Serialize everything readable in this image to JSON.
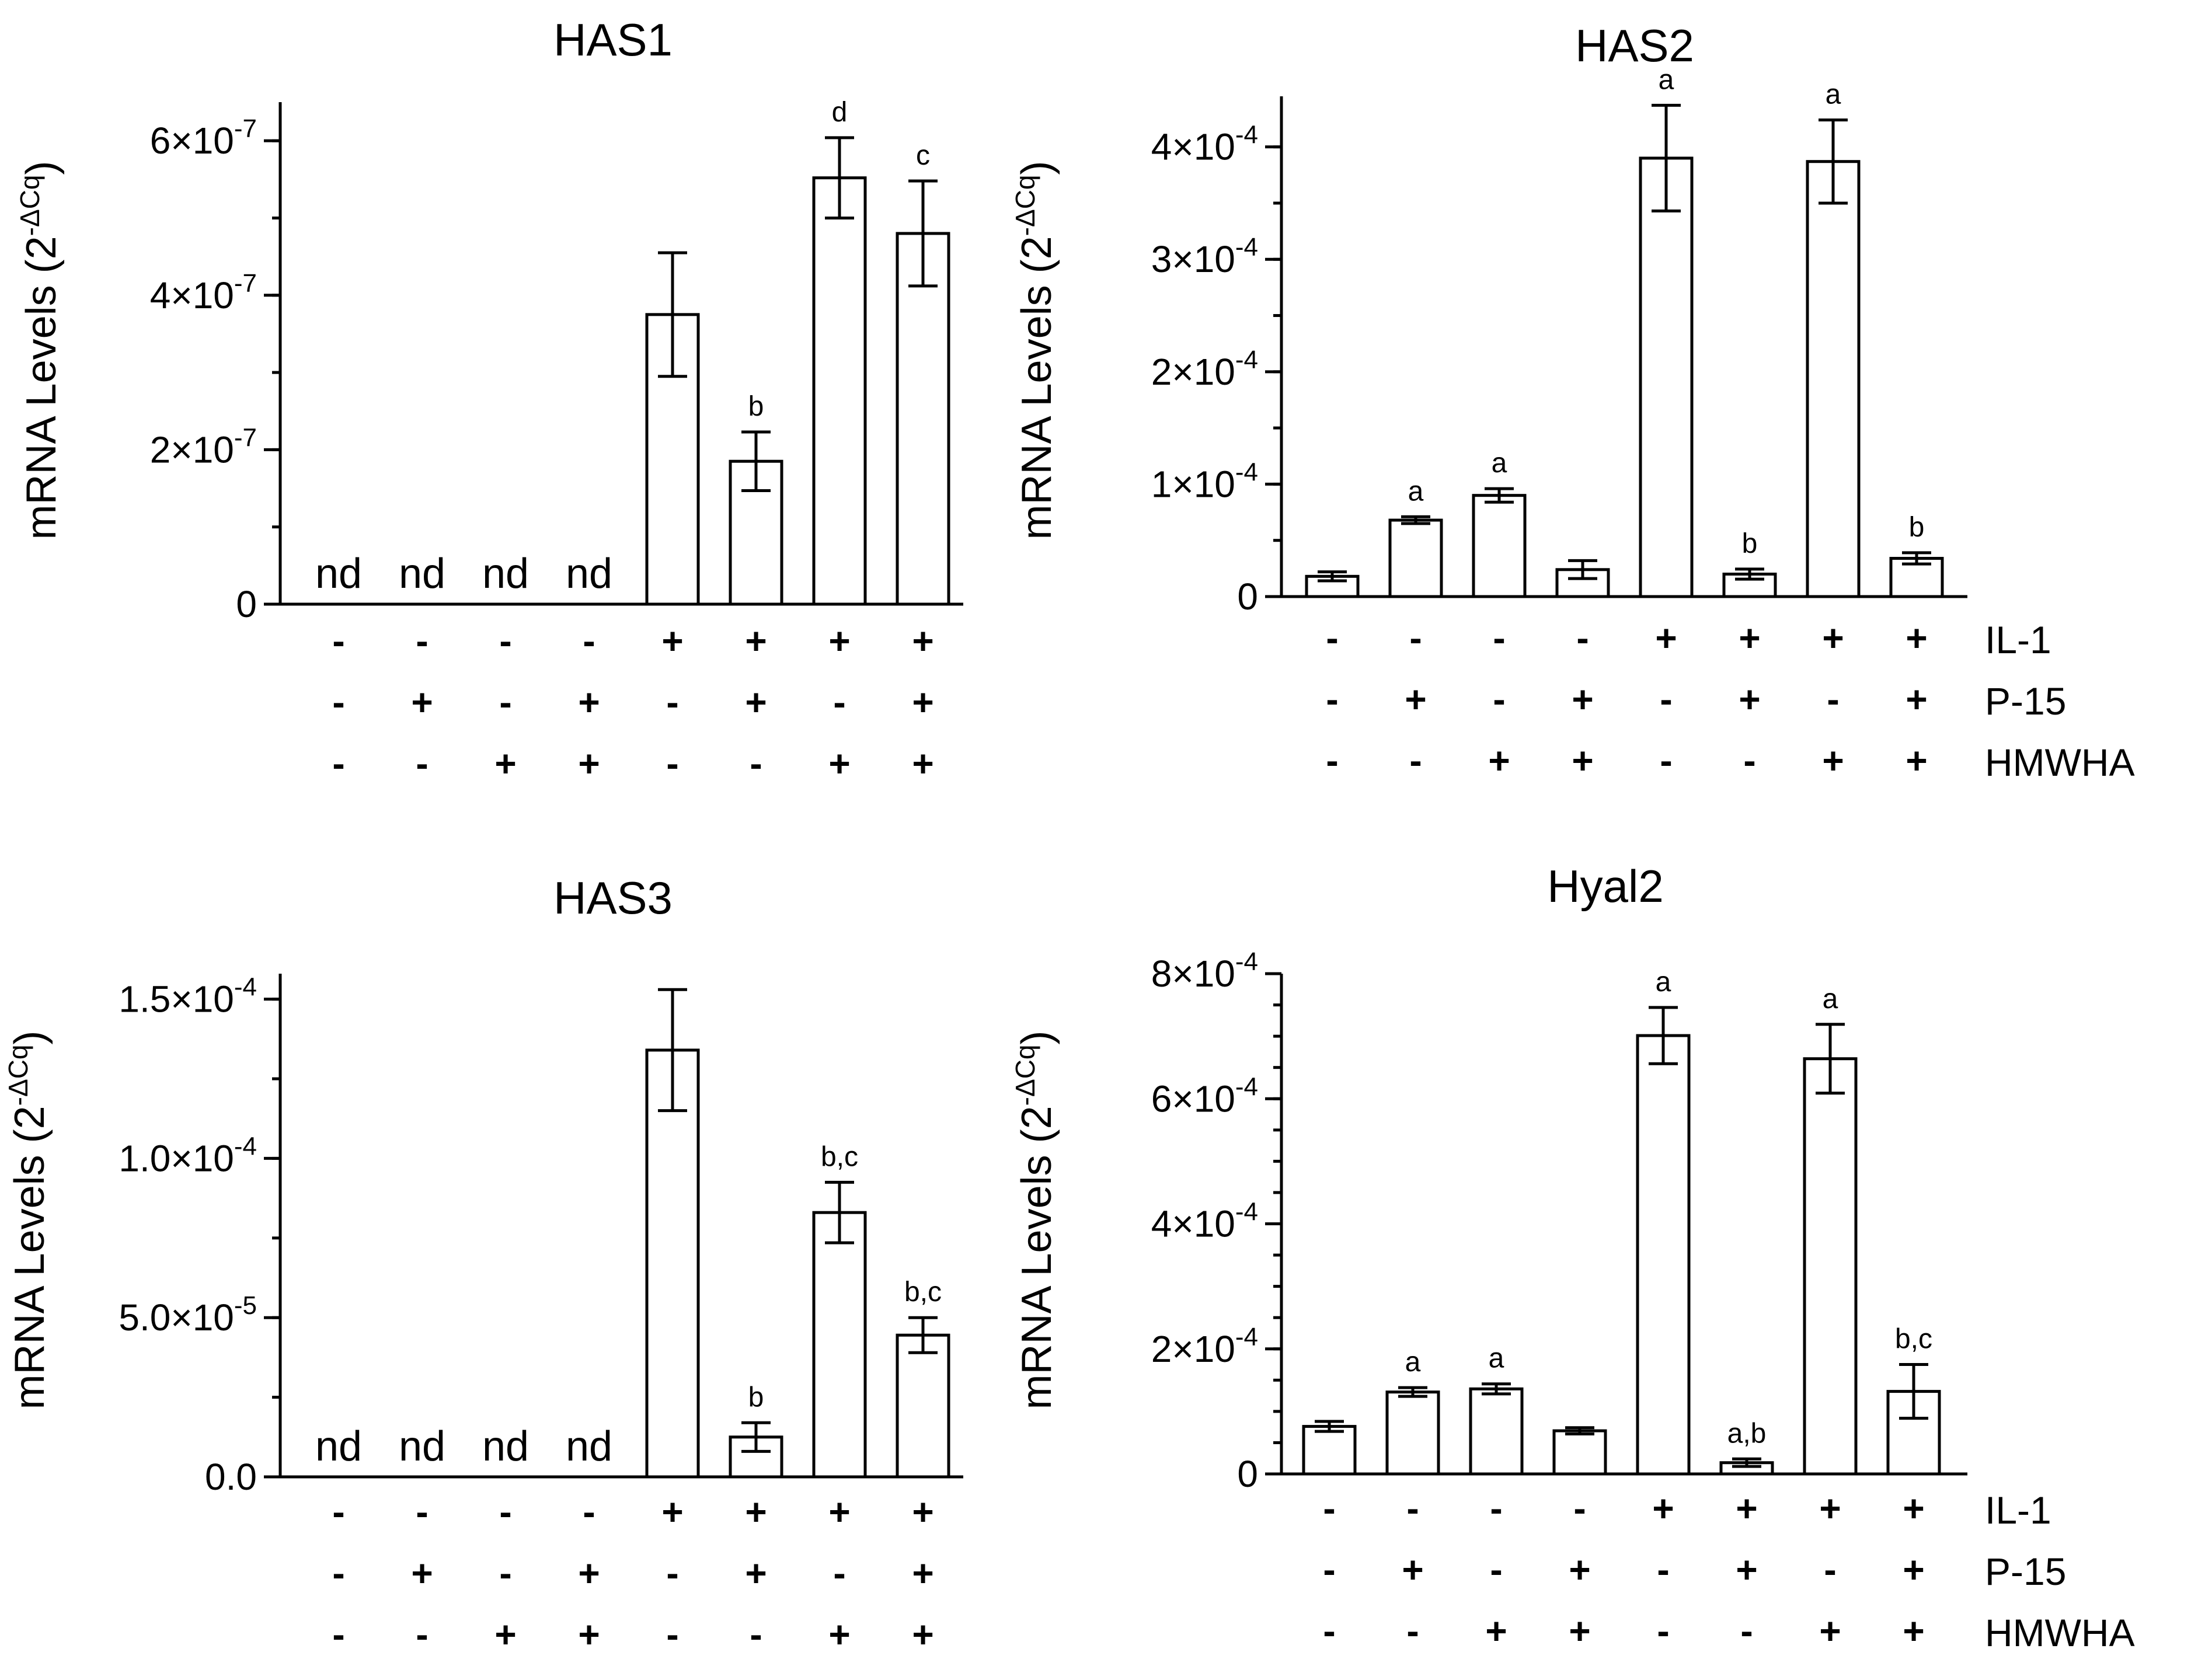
{
  "chart_data": [
    {
      "type": "bar",
      "title": "HAS1",
      "ylabel": "mRNA Levels (2",
      "ylabel_sup": "-ΔCq",
      "ylim": [
        0,
        6.5e-07
      ],
      "yticks": [
        {
          "value": 0,
          "label": "0",
          "mant": "",
          "exp": ""
        },
        {
          "value": 2e-07,
          "label": "",
          "mant": "2×10",
          "exp": "-7"
        },
        {
          "value": 4e-07,
          "label": "",
          "mant": "4×10",
          "exp": "-7"
        },
        {
          "value": 6e-07,
          "label": "",
          "mant": "6×10",
          "exp": "-7"
        }
      ],
      "minor_step": 1e-07,
      "values": [
        null,
        null,
        null,
        null,
        3.75e-07,
        1.85e-07,
        5.52e-07,
        4.8e-07
      ],
      "errors": [
        0,
        0,
        0,
        0,
        8e-08,
        3.8e-08,
        5.2e-08,
        6.8e-08
      ],
      "nd_labels": [
        "nd",
        "nd",
        "nd",
        "nd",
        "",
        "",
        "",
        ""
      ],
      "sig_labels": [
        "",
        "",
        "",
        "",
        "",
        "b",
        "d",
        "c"
      ],
      "conditions": [
        {
          "factor": "IL-1",
          "signs": [
            "-",
            "-",
            "-",
            "-",
            "+",
            "+",
            "+",
            "+"
          ]
        },
        {
          "factor": "P-15",
          "signs": [
            "-",
            "+",
            "-",
            "+",
            "-",
            "+",
            "-",
            "+"
          ]
        },
        {
          "factor": "HMWHA",
          "signs": [
            "-",
            "-",
            "+",
            "+",
            "-",
            "-",
            "+",
            "+"
          ]
        }
      ],
      "show_factor_names": false
    },
    {
      "type": "bar",
      "title": "HAS2",
      "ylabel": "mRNA Levels (2",
      "ylabel_sup": "-ΔCq",
      "ylim": [
        0,
        0.000445
      ],
      "yticks": [
        {
          "value": 0,
          "label": "0",
          "mant": "",
          "exp": ""
        },
        {
          "value": 0.0001,
          "label": "",
          "mant": "1×10",
          "exp": "-4"
        },
        {
          "value": 0.0002,
          "label": "",
          "mant": "2×10",
          "exp": "-4"
        },
        {
          "value": 0.0003,
          "label": "",
          "mant": "3×10",
          "exp": "-4"
        },
        {
          "value": 0.0004,
          "label": "",
          "mant": "4×10",
          "exp": "-4"
        }
      ],
      "minor_step": 5e-05,
      "values": [
        1.8e-05,
        6.8e-05,
        9e-05,
        2.4e-05,
        0.00039,
        2e-05,
        0.000387,
        3.4e-05
      ],
      "errors": [
        4e-06,
        3e-06,
        6e-06,
        8e-06,
        4.7e-05,
        4.5e-06,
        3.7e-05,
        5e-06
      ],
      "nd_labels": [
        "",
        "",
        "",
        "",
        "",
        "",
        "",
        ""
      ],
      "sig_labels": [
        "",
        "a",
        "a",
        "",
        "a",
        "b",
        "a",
        "b"
      ],
      "conditions": [
        {
          "factor": "IL-1",
          "signs": [
            "-",
            "-",
            "-",
            "-",
            "+",
            "+",
            "+",
            "+"
          ]
        },
        {
          "factor": "P-15",
          "signs": [
            "-",
            "+",
            "-",
            "+",
            "-",
            "+",
            "-",
            "+"
          ]
        },
        {
          "factor": "HMWHA",
          "signs": [
            "-",
            "-",
            "+",
            "+",
            "-",
            "-",
            "+",
            "+"
          ]
        }
      ],
      "show_factor_names": true
    },
    {
      "type": "bar",
      "title": "HAS3",
      "ylabel": "mRNA Levels (2",
      "ylabel_sup": "-ΔCq",
      "ylim": [
        0,
        0.000158
      ],
      "yticks": [
        {
          "value": 0,
          "label": "0.0",
          "mant": "",
          "exp": ""
        },
        {
          "value": 5e-05,
          "label": "",
          "mant": "5.0×10",
          "exp": "-5"
        },
        {
          "value": 0.0001,
          "label": "",
          "mant": "1.0×10",
          "exp": "-4"
        },
        {
          "value": 0.00015,
          "label": "",
          "mant": "1.5×10",
          "exp": "-4"
        }
      ],
      "minor_step": 2.5e-05,
      "values": [
        null,
        null,
        null,
        null,
        0.000134,
        1.25e-05,
        8.3e-05,
        4.45e-05
      ],
      "errors": [
        0,
        0,
        0,
        0,
        1.9e-05,
        4.5e-06,
        9.5e-06,
        5.5e-06
      ],
      "nd_labels": [
        "nd",
        "nd",
        "nd",
        "nd",
        "",
        "",
        "",
        ""
      ],
      "sig_labels": [
        "",
        "",
        "",
        "",
        "",
        "b",
        "b,c",
        "b,c"
      ],
      "conditions": [
        {
          "factor": "IL-1",
          "signs": [
            "-",
            "-",
            "-",
            "-",
            "+",
            "+",
            "+",
            "+"
          ]
        },
        {
          "factor": "P-15",
          "signs": [
            "-",
            "+",
            "-",
            "+",
            "-",
            "+",
            "-",
            "+"
          ]
        },
        {
          "factor": "HMWHA",
          "signs": [
            "-",
            "-",
            "+",
            "+",
            "-",
            "-",
            "+",
            "+"
          ]
        }
      ],
      "show_factor_names": false
    },
    {
      "type": "bar",
      "title": "Hyal2",
      "ylabel": "mRNA Levels (2",
      "ylabel_sup": "-ΔCq",
      "ylim": [
        0,
        0.0008
      ],
      "yticks": [
        {
          "value": 0,
          "label": "0",
          "mant": "",
          "exp": ""
        },
        {
          "value": 0.0002,
          "label": "",
          "mant": "2×10",
          "exp": "-4"
        },
        {
          "value": 0.0004,
          "label": "",
          "mant": "4×10",
          "exp": "-4"
        },
        {
          "value": 0.0006,
          "label": "",
          "mant": "6×10",
          "exp": "-4"
        },
        {
          "value": 0.0008,
          "label": "",
          "mant": "8×10",
          "exp": "-4"
        }
      ],
      "minor_step": 5e-05,
      "values": [
        7.6e-05,
        0.000131,
        0.000136,
        6.9e-05,
        0.000701,
        1.8e-05,
        0.000664,
        0.000132
      ],
      "errors": [
        8e-06,
        7e-06,
        8e-06,
        5e-06,
        4.5e-05,
        6e-06,
        5.5e-05,
        4.3e-05
      ],
      "nd_labels": [
        "",
        "",
        "",
        "",
        "",
        "",
        "",
        ""
      ],
      "sig_labels": [
        "",
        "a",
        "a",
        "",
        "a",
        "a,b",
        "a",
        "b,c"
      ],
      "conditions": [
        {
          "factor": "IL-1",
          "signs": [
            "-",
            "-",
            "-",
            "-",
            "+",
            "+",
            "+",
            "+"
          ]
        },
        {
          "factor": "P-15",
          "signs": [
            "-",
            "+",
            "-",
            "+",
            "-",
            "+",
            "-",
            "+"
          ]
        },
        {
          "factor": "HMWHA",
          "signs": [
            "-",
            "-",
            "+",
            "+",
            "-",
            "-",
            "+",
            "+"
          ]
        }
      ],
      "show_factor_names": true
    }
  ]
}
